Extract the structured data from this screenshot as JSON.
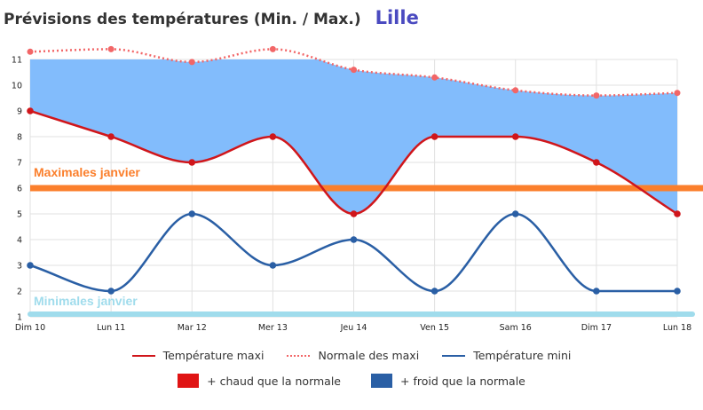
{
  "header": {
    "title": "Prévisions des températures (Min. / Max.)",
    "city": "Lille"
  },
  "colors": {
    "max": "#d0161b",
    "normal": "#f26667",
    "min": "#2a5fa5",
    "area_fill": "#82bcfc",
    "max_ref": "#fb7f2c",
    "min_ref": "#a0dcec",
    "warmer": "#e01414",
    "colder": "#2a5fa5"
  },
  "chart_data": {
    "type": "line",
    "categories": [
      "Dim 10",
      "Lun 11",
      "Mar 12",
      "Mer 13",
      "Jeu 14",
      "Ven 15",
      "Sam 16",
      "Dim 17",
      "Lun 18"
    ],
    "ylim": [
      1,
      11
    ],
    "yticks": [
      1,
      2,
      3,
      4,
      5,
      6,
      7,
      8,
      9,
      10,
      11
    ],
    "grid": true,
    "series": [
      {
        "name": "Température maxi",
        "style": "solid",
        "values": [
          9,
          8,
          7,
          8,
          5,
          8,
          8,
          7,
          5
        ]
      },
      {
        "name": "Normale des maxi",
        "style": "dotted",
        "values": [
          11.3,
          11.4,
          10.9,
          11.4,
          10.6,
          10.3,
          9.8,
          9.6,
          9.7
        ]
      },
      {
        "name": "Température mini",
        "style": "solid",
        "values": [
          3,
          2,
          5,
          3,
          4,
          2,
          5,
          2,
          2
        ]
      }
    ],
    "reference_lines": [
      {
        "label": "Maximales janvier",
        "value": 6
      },
      {
        "label": "Minimales janvier",
        "value": 1
      }
    ],
    "area_between": "Normale des maxi / Température maxi (clipped at 11)",
    "legend_position": "bottom"
  },
  "legend": {
    "items": [
      "Température maxi",
      "Normale des maxi",
      "Température mini"
    ],
    "warmer_label": "+ chaud que la normale",
    "colder_label": "+ froid que la normale"
  }
}
